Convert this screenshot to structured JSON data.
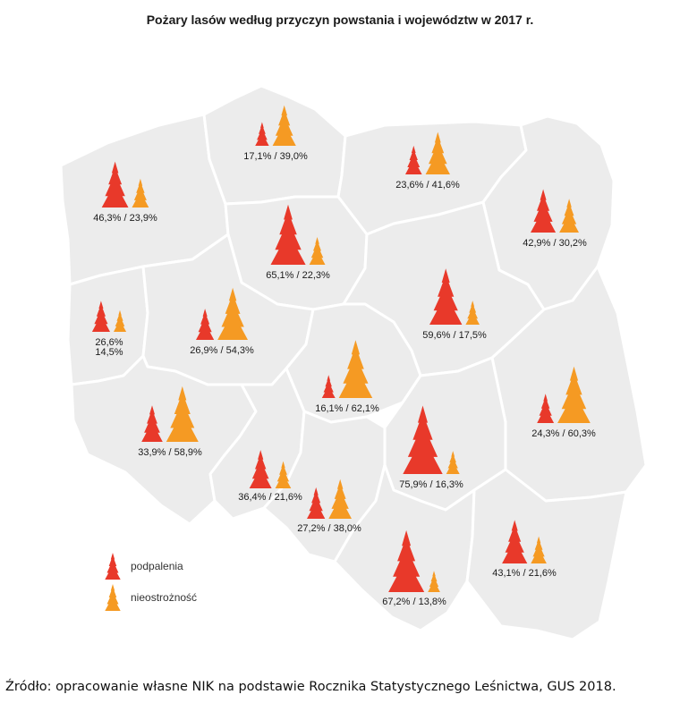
{
  "title": "Pożary lasów według przyczyn powstania i województw w 2017 r.",
  "source": "Źródło: opracowanie  własne NIK na podstawie Rocznika Statystycznego Leśnictwa, GUS 2018.",
  "colors": {
    "podpalenia": "#e8392a",
    "nieostroznosc": "#f59a23",
    "land": "#ececec",
    "border": "#ffffff"
  },
  "legend": [
    {
      "key": "podpalenia",
      "label": "podpalenia"
    },
    {
      "key": "nieostroznosc",
      "label": "nieostrożność"
    }
  ],
  "voivodeships": [
    {
      "name": "zachodniopomorskie",
      "podpalenia": 46.3,
      "nieostroznosc": 23.9,
      "label": "46,3% / 23,9%"
    },
    {
      "name": "pomorskie",
      "podpalenia": 17.1,
      "nieostroznosc": 39.0,
      "label": "17,1% / 39,0%"
    },
    {
      "name": "warmińsko-mazurskie",
      "podpalenia": 23.6,
      "nieostroznosc": 41.6,
      "label": "23,6% / 41,6%"
    },
    {
      "name": "podlaskie",
      "podpalenia": 42.9,
      "nieostroznosc": 30.2,
      "label": "42,9% / 30,2%"
    },
    {
      "name": "kujawsko-pomorskie",
      "podpalenia": 65.1,
      "nieostroznosc": 22.3,
      "label": "65,1% / 22,3%"
    },
    {
      "name": "lubuskie",
      "podpalenia": 26.6,
      "nieostroznosc": 14.5,
      "label": "26,6%",
      "label2": "14,5%"
    },
    {
      "name": "wielkopolskie",
      "podpalenia": 26.9,
      "nieostroznosc": 54.3,
      "label": "26,9% / 54,3%"
    },
    {
      "name": "mazowieckie",
      "podpalenia": 59.6,
      "nieostroznosc": 17.5,
      "label": "59,6% / 17,5%"
    },
    {
      "name": "łódzkie",
      "podpalenia": 16.1,
      "nieostroznosc": 62.1,
      "label": "16,1% / 62,1%"
    },
    {
      "name": "lubelskie",
      "podpalenia": 24.3,
      "nieostroznosc": 60.3,
      "label": "24,3% / 60,3%"
    },
    {
      "name": "dolnośląskie",
      "podpalenia": 33.9,
      "nieostroznosc": 58.9,
      "label": "33,9% / 58,9%"
    },
    {
      "name": "świętokrzyskie",
      "podpalenia": 75.9,
      "nieostroznosc": 16.3,
      "label": "75,9% / 16,3%"
    },
    {
      "name": "opolskie",
      "podpalenia": 36.4,
      "nieostroznosc": 21.6,
      "label": "36,4% / 21,6%"
    },
    {
      "name": "śląskie",
      "podpalenia": 27.2,
      "nieostroznosc": 38.0,
      "label": "27,2% / 38,0%"
    },
    {
      "name": "małopolskie",
      "podpalenia": 67.2,
      "nieostroznosc": 13.8,
      "label": "67,2% / 13,8%"
    },
    {
      "name": "podkarpackie",
      "podpalenia": 43.1,
      "nieostroznosc": 21.6,
      "label": "43,1% / 21,6%"
    }
  ]
}
